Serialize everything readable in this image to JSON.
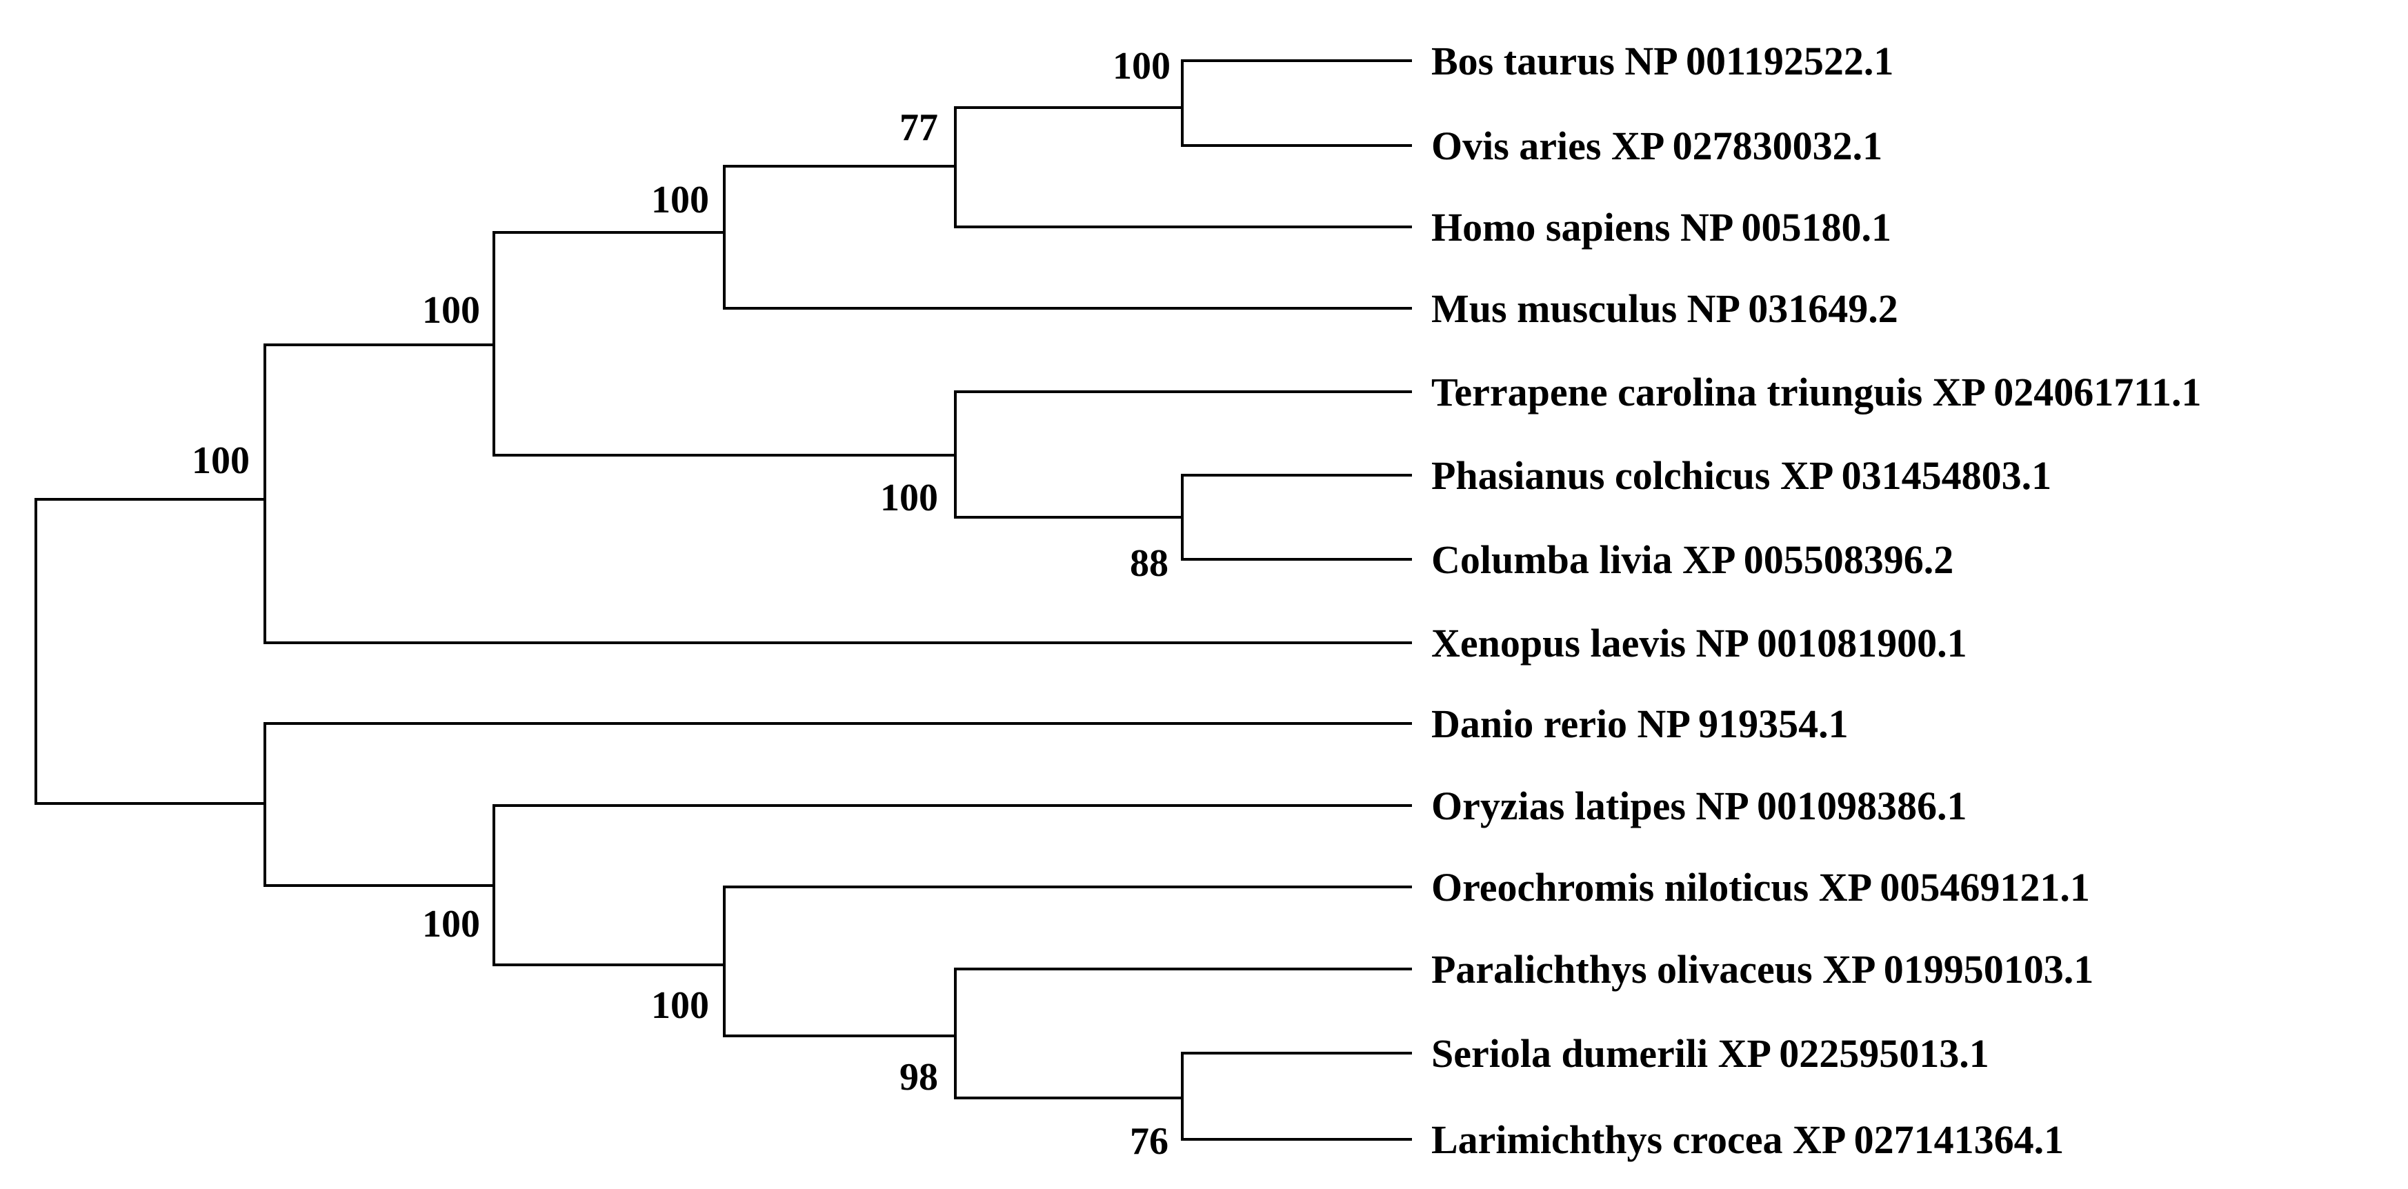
{
  "tree": {
    "taxa": [
      "Bos taurus NP 001192522.1",
      "Ovis aries XP 027830032.1",
      "Homo sapiens NP 005180.1",
      "Mus musculus NP 031649.2",
      "Terrapene carolina triunguis XP 024061711.1",
      "Phasianus colchicus XP 031454803.1",
      "Columba livia XP 005508396.2",
      "Xenopus laevis NP 001081900.1",
      "Danio rerio NP 919354.1",
      "Oryzias latipes NP 001098386.1",
      "Oreochromis niloticus XP 005469121.1",
      "Paralichthys olivaceus XP 019950103.1",
      "Seriola dumerili XP 022595013.1",
      "Larimichthys crocea XP 027141364.1"
    ],
    "newick": "(((((((Bos taurus NP 001192522.1,Ovis aries XP 027830032.1)100,Homo sapiens NP 005180.1)77,Mus musculus NP 031649.2)100,(Terrapene carolina triunguis XP 024061711.1,(Phasianus colchicus XP 031454803.1,Columba livia XP 005508396.2)88)100)100,Xenopus laevis NP 001081900.1)100,(Danio rerio NP 919354.1,(Oryzias latipes NP 001098386.1,(Oreochromis niloticus XP 005469121.1,(Paralichthys olivaceus XP 019950103.1,(Seriola dumerili XP 022595013.1,Larimichthys crocea XP 027141364.1)76)98)100)100));",
    "root": {
      "children": [
        {
          "support": "100",
          "children": [
            {
              "support": "100",
              "children": [
                {
                  "support": "100",
                  "children": [
                    {
                      "support": "77",
                      "children": [
                        {
                          "support": "100",
                          "children": [
                            {
                              "taxon": 0
                            },
                            {
                              "taxon": 1
                            }
                          ]
                        },
                        {
                          "taxon": 2
                        }
                      ]
                    },
                    {
                      "taxon": 3
                    }
                  ]
                },
                {
                  "support": "100",
                  "children": [
                    {
                      "taxon": 4
                    },
                    {
                      "support": "88",
                      "children": [
                        {
                          "taxon": 5
                        },
                        {
                          "taxon": 6
                        }
                      ]
                    }
                  ]
                }
              ]
            },
            {
              "taxon": 7
            }
          ]
        },
        {
          "children": [
            {
              "taxon": 8
            },
            {
              "support": "100",
              "children": [
                {
                  "taxon": 9
                },
                {
                  "support": "100",
                  "children": [
                    {
                      "taxon": 10
                    },
                    {
                      "support": "98",
                      "children": [
                        {
                          "taxon": 11
                        },
                        {
                          "support": "76",
                          "children": [
                            {
                              "taxon": 12
                            },
                            {
                              "taxon": 13
                            }
                          ]
                        }
                      ]
                    }
                  ]
                }
              ]
            }
          ]
        }
      ]
    }
  }
}
